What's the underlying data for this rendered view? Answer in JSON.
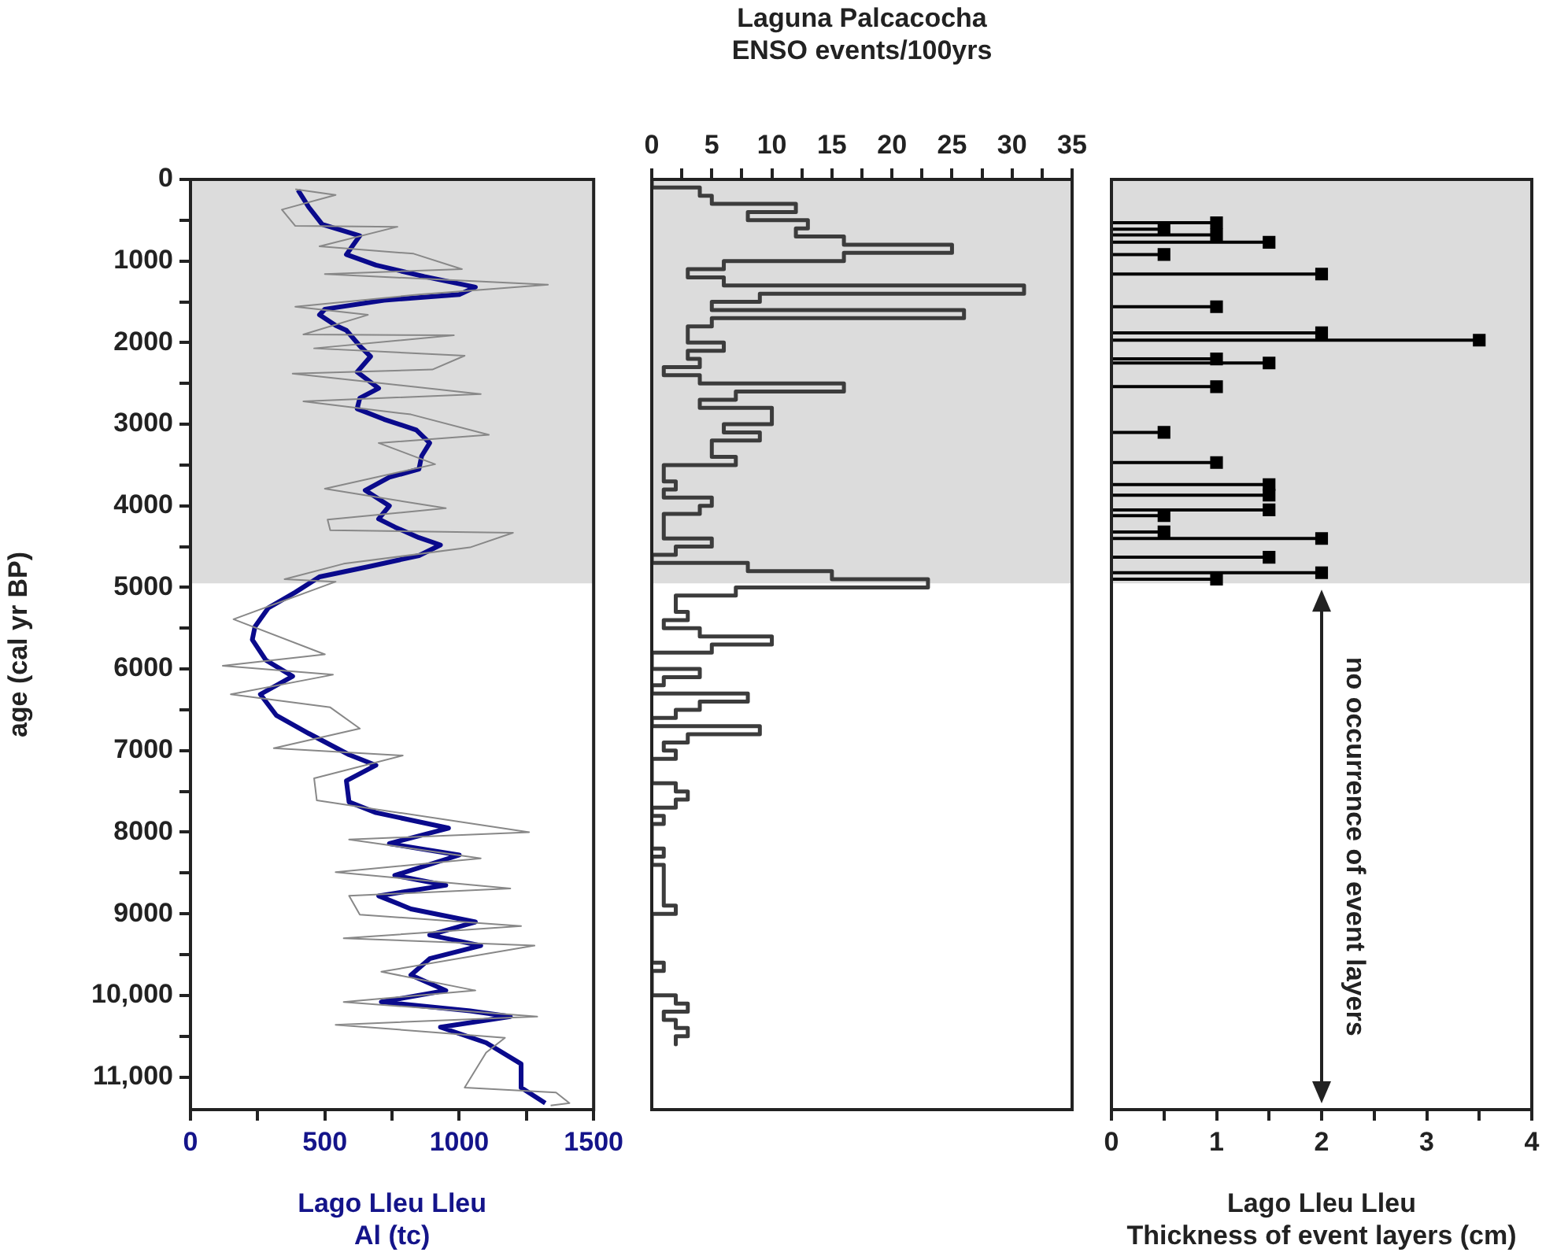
{
  "chart_data": [
    {
      "type": "line",
      "orientation": "horizontal",
      "xlabel": "Lago Lleu Lleu\nAl (tc)",
      "ylabel": "age (cal yr BP)",
      "xlim": [
        0,
        1500
      ],
      "xticks": [
        0,
        {
          "value": 250,
          "label": null
        },
        500,
        {
          "value": 750,
          "label": null
        },
        1000,
        {
          "value": 1250,
          "label": null
        },
        1500
      ],
      "ylim": [
        11400,
        0
      ],
      "yticks": [
        0,
        {
          "value": 500,
          "label": null
        },
        1000,
        {
          "value": 1500,
          "label": null
        },
        2000,
        {
          "value": 2500,
          "label": null
        },
        3000,
        {
          "value": 3500,
          "label": null
        },
        4000,
        {
          "value": 4500,
          "label": null
        },
        5000,
        {
          "value": 5500,
          "label": null
        },
        6000,
        {
          "value": 6500,
          "label": null
        },
        7000,
        {
          "value": 7500,
          "label": null
        },
        8000,
        {
          "value": 8500,
          "label": null
        },
        9000,
        {
          "value": 9500,
          "label": null
        },
        {
          "value": 10000,
          "label": "10,000"
        },
        {
          "value": 10500,
          "label": null
        },
        {
          "value": 11000,
          "label": "11,000"
        }
      ],
      "bands": [
        {
          "axis": "y",
          "from": 0,
          "to": 4950,
          "color": "#dcdcdc"
        }
      ],
      "series": [
        {
          "color": "#888888",
          "x": [
            120,
            190,
            370,
            570,
            580,
            820,
            910,
            1100,
            1160,
            1290,
            1410,
            1560,
            1660,
            1900,
            1910,
            2070,
            2160,
            2330,
            2380,
            2630,
            2720,
            2880,
            3130,
            3230,
            3490,
            3790,
            4030,
            4170,
            4300,
            4330,
            4510,
            4710,
            4900,
            4930,
            5390,
            5820,
            5960,
            6070,
            6310,
            6470,
            6730,
            6970,
            7060,
            7340,
            7610,
            8000,
            8090,
            8320,
            8490,
            8690,
            8780,
            9010,
            9150,
            9300,
            9390,
            9710,
            9940,
            10080,
            10260,
            10360,
            10520,
            10700,
            11130,
            11190,
            11320,
            11350
          ],
          "values": [
            390,
            540,
            340,
            390,
            770,
            480,
            830,
            1010,
            500,
            1330,
            850,
            390,
            660,
            420,
            980,
            460,
            1020,
            900,
            380,
            1080,
            420,
            820,
            1110,
            700,
            910,
            500,
            950,
            510,
            520,
            1200,
            1040,
            570,
            350,
            540,
            160,
            500,
            120,
            530,
            150,
            520,
            630,
            310,
            790,
            460,
            470,
            1260,
            590,
            1080,
            540,
            1190,
            590,
            630,
            1230,
            570,
            1280,
            710,
            1060,
            570,
            1290,
            540,
            1170,
            1100,
            1020,
            1360,
            1410,
            1340
          ]
        },
        {
          "color": "#0a0a8c",
          "x": [
            130,
            340,
            550,
            690,
            920,
            1050,
            1190,
            1320,
            1410,
            1480,
            1590,
            1660,
            1790,
            1850,
            2040,
            2170,
            2360,
            2560,
            2680,
            2810,
            2940,
            3070,
            3230,
            3390,
            3550,
            3650,
            3810,
            4000,
            4160,
            4260,
            4390,
            4480,
            4610,
            4740,
            4870,
            5060,
            5250,
            5480,
            5640,
            5890,
            6090,
            6310,
            6570,
            6790,
            7050,
            7180,
            7370,
            7630,
            7760,
            7950,
            8140,
            8280,
            8530,
            8650,
            8780,
            8940,
            9100,
            9260,
            9390,
            9550,
            9750,
            9940,
            10080,
            10190,
            10260,
            10390,
            10580,
            10840,
            11130,
            11320
          ],
          "values": [
            400,
            440,
            490,
            630,
            580,
            690,
            870,
            1060,
            1000,
            720,
            500,
            480,
            540,
            580,
            630,
            670,
            620,
            700,
            630,
            620,
            720,
            840,
            890,
            860,
            850,
            740,
            650,
            740,
            700,
            760,
            850,
            930,
            850,
            670,
            480,
            390,
            290,
            240,
            230,
            280,
            380,
            260,
            320,
            440,
            590,
            690,
            580,
            590,
            690,
            960,
            740,
            1000,
            760,
            950,
            700,
            820,
            1060,
            890,
            1080,
            890,
            820,
            950,
            710,
            1040,
            1190,
            930,
            1100,
            1230,
            1230,
            1320
          ]
        }
      ]
    },
    {
      "type": "histogram",
      "orientation": "horizontal",
      "xlabel": "Laguna Palcacocha\nENSO events/100yrs",
      "tick_labels": "x",
      "xlim": [
        0,
        35
      ],
      "xticks": [
        0,
        {
          "value": 2.5,
          "label": null
        },
        5,
        {
          "value": 7.5,
          "label": null
        },
        10,
        {
          "value": 12.5,
          "label": null
        },
        15,
        {
          "value": 17.5,
          "label": null
        },
        20,
        {
          "value": 22.5,
          "label": null
        },
        25,
        {
          "value": 27.5,
          "label": null
        },
        30,
        {
          "value": 32.5,
          "label": null
        },
        35
      ],
      "ylim": [
        11400,
        0
      ],
      "color": "#3c3c3c",
      "bands": [
        {
          "axis": "y",
          "from": 0,
          "to": 4950,
          "color": "#dcdcdc"
        }
      ],
      "bins": [
        0,
        100,
        200,
        300,
        400,
        500,
        600,
        700,
        800,
        900,
        1000,
        1100,
        1200,
        1300,
        1400,
        1500,
        1600,
        1700,
        1800,
        1900,
        2000,
        2100,
        2200,
        2300,
        2400,
        2500,
        2600,
        2700,
        2800,
        2900,
        3000,
        3100,
        3200,
        3300,
        3400,
        3500,
        3600,
        3700,
        3800,
        3900,
        4000,
        4100,
        4200,
        4300,
        4400,
        4500,
        4600,
        4700,
        4800,
        4900,
        5000,
        5100,
        5200,
        5300,
        5400,
        5500,
        5600,
        5700,
        5800,
        5900,
        6000,
        6100,
        6200,
        6300,
        6400,
        6500,
        6600,
        6700,
        6800,
        6900,
        7000,
        7100,
        7200,
        7300,
        7400,
        7500,
        7600,
        7700,
        7800,
        7900,
        8000,
        8100,
        8200,
        8300,
        8400,
        8500,
        8600,
        8700,
        8800,
        8900,
        9000,
        9100,
        9200,
        9300,
        9400,
        9500,
        9600,
        9700,
        9800,
        9900,
        10000,
        10100,
        10200,
        10300,
        10400,
        10500,
        10600
      ],
      "values": [
        0,
        4,
        5,
        12,
        8,
        13,
        12,
        16,
        25,
        16,
        6,
        3,
        6,
        31,
        9,
        5,
        26,
        5,
        3,
        3,
        6,
        3,
        4,
        1,
        4,
        16,
        7,
        4,
        10,
        10,
        6,
        9,
        5,
        5,
        7,
        1,
        1,
        2,
        1,
        5,
        4,
        1,
        1,
        1,
        5,
        2,
        0,
        8,
        15,
        23,
        7,
        2,
        2,
        3,
        1,
        4,
        10,
        5,
        0,
        0,
        4,
        1,
        0,
        8,
        4,
        2,
        0,
        9,
        3,
        1,
        2,
        0,
        0,
        0,
        2,
        3,
        2,
        0,
        1,
        0,
        0,
        0,
        1,
        0,
        1,
        1,
        1,
        1,
        1,
        2,
        0,
        0,
        0,
        0,
        0,
        0,
        1,
        0,
        0,
        0,
        2,
        3,
        1,
        2,
        3,
        2
      ]
    },
    {
      "type": "lollipop",
      "orientation": "horizontal",
      "xlabel": "Lago Lleu Lleu\nThickness of event layers (cm)",
      "tick_labels": "x",
      "xlim": [
        0,
        4
      ],
      "xticks": [
        0,
        {
          "value": 0.5,
          "label": null
        },
        1,
        {
          "value": 1.5,
          "label": null
        },
        2,
        {
          "value": 2.5,
          "label": null
        },
        3,
        {
          "value": 3.5,
          "label": null
        },
        4
      ],
      "ylim": [
        11400,
        0
      ],
      "color": "#000000",
      "marker": "square",
      "bands": [
        {
          "axis": "y",
          "from": 0,
          "to": 4950,
          "color": "#dcdcdc"
        }
      ],
      "annotations": [
        "no occurrence of event layers"
      ],
      "x": [
        530,
        610,
        680,
        770,
        920,
        1160,
        1560,
        1880,
        1970,
        2200,
        2250,
        2540,
        3100,
        3470,
        3740,
        3870,
        4050,
        4120,
        4320,
        4400,
        4630,
        4820,
        4900
      ],
      "values": [
        1,
        0.5,
        1,
        1.5,
        0.5,
        2,
        1,
        2,
        3.5,
        1,
        1.5,
        1,
        0.5,
        1,
        1.5,
        1.5,
        1.5,
        0.5,
        0.5,
        2,
        1.5,
        2,
        1
      ]
    }
  ]
}
